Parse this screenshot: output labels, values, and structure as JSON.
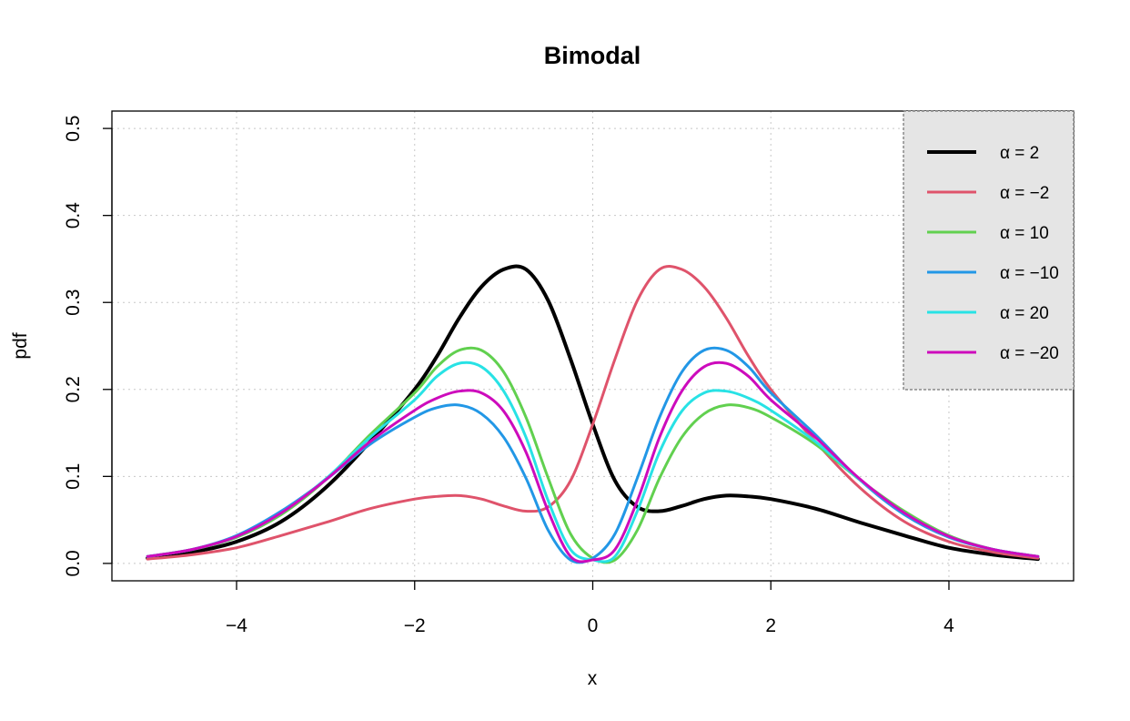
{
  "chart_data": {
    "type": "line",
    "title": "Bimodal",
    "xlabel": "x",
    "ylabel": "pdf",
    "xlim": [
      -5.4,
      5.4
    ],
    "ylim": [
      -0.02,
      0.52
    ],
    "x_ticks": [
      -4,
      -2,
      0,
      2,
      4
    ],
    "x_tick_labels": [
      "−4",
      "−2",
      "0",
      "2",
      "4"
    ],
    "y_ticks": [
      0.0,
      0.1,
      0.2,
      0.3,
      0.4,
      0.5
    ],
    "y_tick_labels": [
      "0.0",
      "0.1",
      "0.2",
      "0.3",
      "0.4",
      "0.5"
    ],
    "grid": true,
    "legend_position": "top-right",
    "legend_background": "#e5e5e5",
    "x": [
      -5,
      -4.5,
      -4,
      -3.5,
      -3,
      -2.5,
      -2,
      -1.75,
      -1.5,
      -1.25,
      -1,
      -0.75,
      -0.5,
      -0.25,
      0,
      0.25,
      0.5,
      0.75,
      1,
      1.25,
      1.5,
      1.75,
      2,
      2.5,
      3,
      3.5,
      4,
      4.5,
      5
    ],
    "series": [
      {
        "name": "α = 2",
        "color": "#000000",
        "width": 4,
        "values": [
          0.006,
          0.013,
          0.025,
          0.048,
          0.087,
          0.14,
          0.2,
          0.238,
          0.282,
          0.318,
          0.338,
          0.338,
          0.302,
          0.235,
          0.16,
          0.095,
          0.065,
          0.06,
          0.066,
          0.074,
          0.078,
          0.077,
          0.074,
          0.063,
          0.047,
          0.032,
          0.018,
          0.01,
          0.005
        ]
      },
      {
        "name": "α = −2",
        "color": "#df536b",
        "width": 3,
        "values": [
          0.005,
          0.01,
          0.018,
          0.032,
          0.047,
          0.063,
          0.074,
          0.077,
          0.078,
          0.074,
          0.066,
          0.06,
          0.065,
          0.095,
          0.16,
          0.235,
          0.302,
          0.338,
          0.338,
          0.318,
          0.282,
          0.238,
          0.2,
          0.14,
          0.087,
          0.048,
          0.025,
          0.013,
          0.006
        ]
      },
      {
        "name": "α = 10",
        "color": "#61d04f",
        "width": 3,
        "values": [
          0.008,
          0.016,
          0.03,
          0.056,
          0.096,
          0.148,
          0.196,
          0.226,
          0.245,
          0.245,
          0.22,
          0.168,
          0.098,
          0.034,
          0.006,
          0.004,
          0.038,
          0.098,
          0.145,
          0.172,
          0.182,
          0.179,
          0.168,
          0.137,
          0.096,
          0.06,
          0.032,
          0.016,
          0.008
        ]
      },
      {
        "name": "α = −10",
        "color": "#2297e6",
        "width": 3,
        "values": [
          0.008,
          0.016,
          0.032,
          0.06,
          0.096,
          0.137,
          0.168,
          0.179,
          0.182,
          0.172,
          0.145,
          0.098,
          0.038,
          0.004,
          0.006,
          0.034,
          0.098,
          0.168,
          0.22,
          0.245,
          0.245,
          0.226,
          0.196,
          0.148,
          0.096,
          0.056,
          0.03,
          0.016,
          0.008
        ]
      },
      {
        "name": "α = 20",
        "color": "#28e2e5",
        "width": 3,
        "values": [
          0.008,
          0.016,
          0.031,
          0.058,
          0.097,
          0.145,
          0.188,
          0.215,
          0.23,
          0.226,
          0.198,
          0.145,
          0.072,
          0.016,
          0.004,
          0.008,
          0.06,
          0.128,
          0.175,
          0.196,
          0.198,
          0.19,
          0.176,
          0.14,
          0.096,
          0.058,
          0.031,
          0.016,
          0.008
        ]
      },
      {
        "name": "α = −20",
        "color": "#cd0bbc",
        "width": 3,
        "values": [
          0.008,
          0.016,
          0.031,
          0.058,
          0.096,
          0.14,
          0.176,
          0.19,
          0.198,
          0.196,
          0.175,
          0.128,
          0.06,
          0.008,
          0.004,
          0.016,
          0.072,
          0.145,
          0.198,
          0.226,
          0.23,
          0.215,
          0.188,
          0.145,
          0.097,
          0.058,
          0.031,
          0.016,
          0.008
        ]
      }
    ]
  }
}
